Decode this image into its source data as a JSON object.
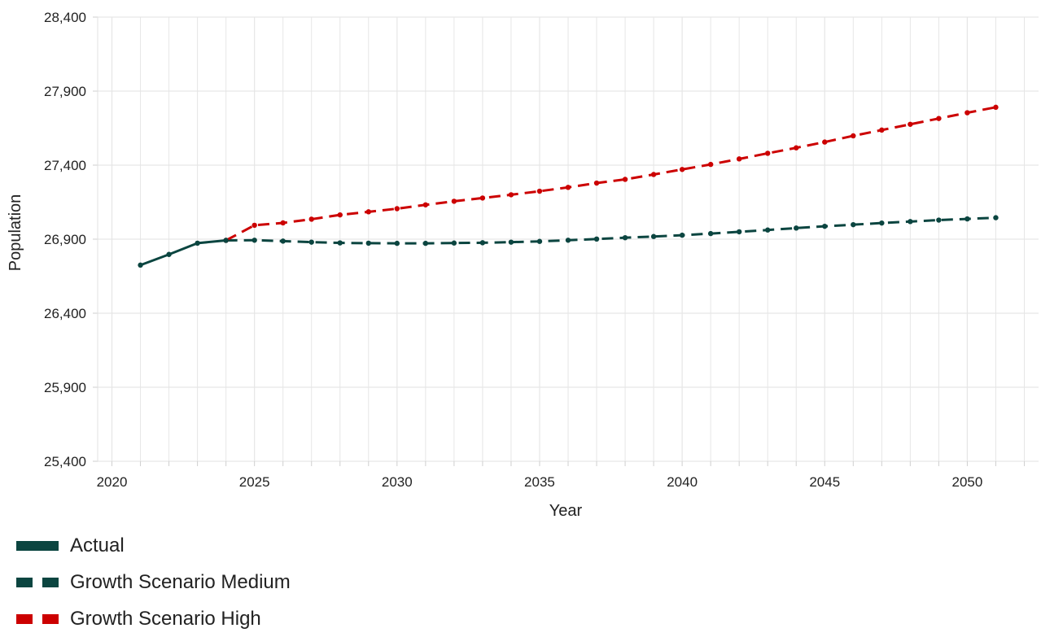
{
  "chart_data": {
    "type": "line",
    "xlabel": "Year",
    "ylabel": "Population",
    "xlim": [
      2019.5,
      2052.5
    ],
    "ylim": [
      25400,
      28400
    ],
    "x_ticks": [
      2020,
      2025,
      2030,
      2035,
      2040,
      2045,
      2050
    ],
    "x_tick_labels": [
      "2020",
      "2025",
      "2030",
      "2035",
      "2040",
      "2045",
      "2050"
    ],
    "y_ticks": [
      25400,
      25900,
      26400,
      26900,
      27400,
      27900,
      28400
    ],
    "y_tick_labels": [
      "25,400",
      "25,900",
      "26,400",
      "26,900",
      "27,400",
      "27,900",
      "28,400"
    ],
    "grid": true,
    "legend_position": "bottom-left",
    "series": [
      {
        "name": "Actual",
        "color": "#0b4540",
        "style": "solid",
        "x": [
          2021,
          2022,
          2023,
          2024
        ],
        "values": [
          26725,
          26797,
          26873,
          26892
        ]
      },
      {
        "name": "Growth Scenario Medium",
        "color": "#0b4540",
        "style": "dashed",
        "x": [
          2024,
          2025,
          2026,
          2027,
          2028,
          2029,
          2030,
          2031,
          2032,
          2033,
          2034,
          2035,
          2036,
          2037,
          2038,
          2039,
          2040,
          2041,
          2042,
          2043,
          2044,
          2045,
          2046,
          2047,
          2048,
          2049,
          2050,
          2051
        ],
        "values": [
          26892,
          26893,
          26887,
          26880,
          26875,
          26873,
          26872,
          26872,
          26874,
          26876,
          26880,
          26885,
          26893,
          26901,
          26910,
          26918,
          26927,
          26938,
          26950,
          26962,
          26975,
          26987,
          26998,
          27009,
          27019,
          27029,
          27037,
          27045
        ]
      },
      {
        "name": "Growth Scenario High",
        "color": "#cc0000",
        "style": "dashed",
        "x": [
          2024,
          2025,
          2026,
          2027,
          2028,
          2029,
          2030,
          2031,
          2032,
          2033,
          2034,
          2035,
          2036,
          2037,
          2038,
          2039,
          2040,
          2041,
          2042,
          2043,
          2044,
          2045,
          2046,
          2047,
          2048,
          2049,
          2050,
          2051
        ],
        "values": [
          26892,
          26994,
          27010,
          27035,
          27064,
          27085,
          27106,
          27132,
          27156,
          27178,
          27200,
          27224,
          27250,
          27279,
          27304,
          27337,
          27371,
          27405,
          27442,
          27480,
          27517,
          27556,
          27598,
          27637,
          27676,
          27715,
          27754,
          27791
        ]
      }
    ]
  }
}
